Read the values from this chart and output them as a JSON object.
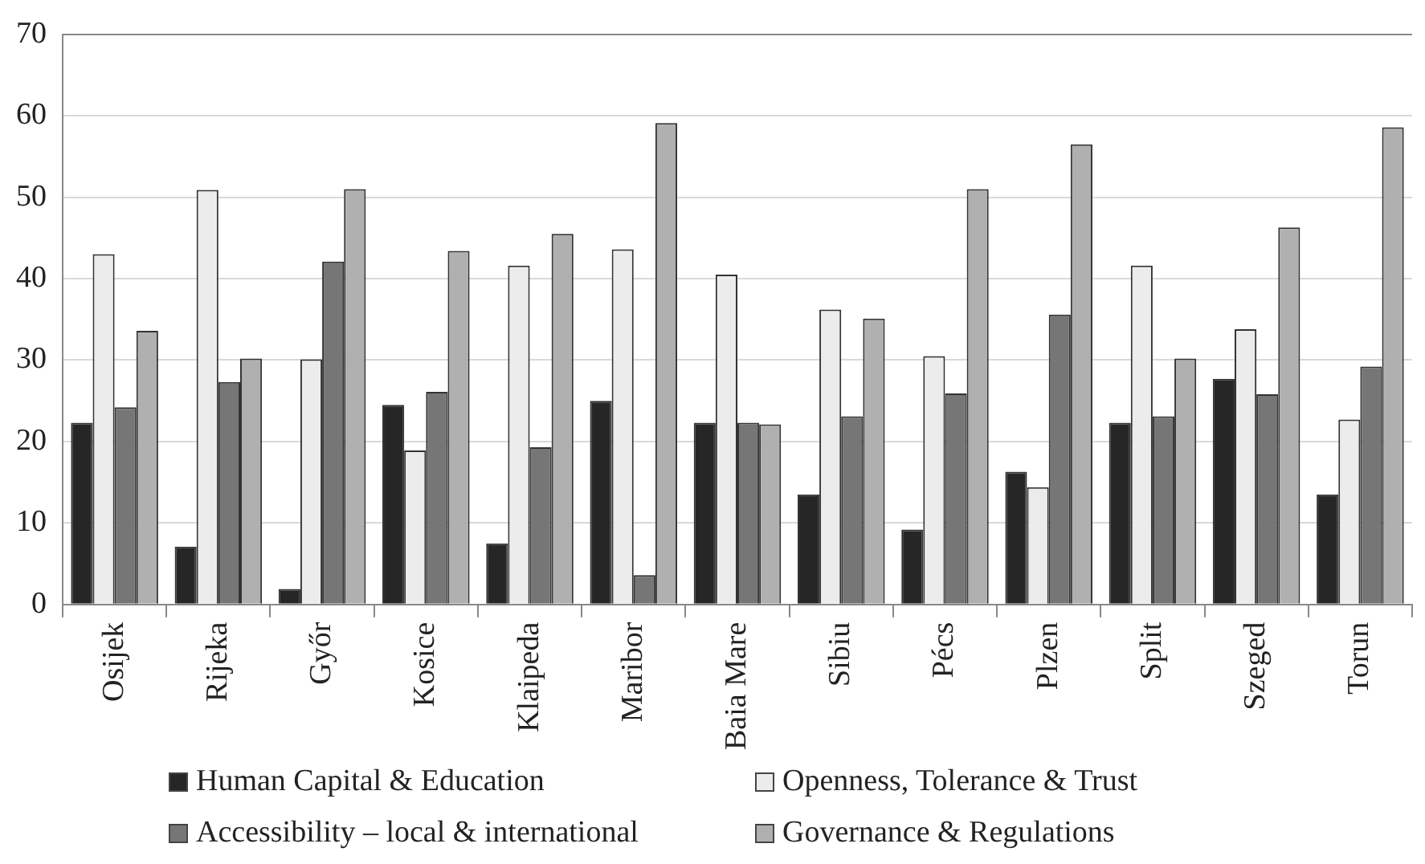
{
  "chart_data": {
    "type": "bar",
    "categories": [
      "Osijek",
      "Rijeka",
      "Győr",
      "Kosice",
      "Klaipeda",
      "Maribor",
      "Baia Mare",
      "Sibiu",
      "Pécs",
      "Plzen",
      "Split",
      "Szeged",
      "Torun"
    ],
    "series": [
      {
        "name": "Human Capital & Education",
        "color": "#262626",
        "values": [
          22.3,
          7.1,
          1.9,
          24.5,
          7.5,
          25,
          22.3,
          13.5,
          9.2,
          16.3,
          22.3,
          27.7,
          13.5
        ]
      },
      {
        "name": "Openness, Tolerance & Trust",
        "color": "#ececec",
        "values": [
          43,
          50.9,
          30.1,
          18.9,
          41.6,
          43.6,
          40.5,
          36.2,
          30.5,
          14.4,
          41.6,
          33.8,
          22.7
        ]
      },
      {
        "name": "Accessibility – local & international",
        "color": "#767676",
        "values": [
          24.2,
          27.3,
          42.1,
          26.1,
          19.3,
          3.6,
          22.3,
          23.1,
          25.9,
          35.6,
          23.1,
          25.8,
          29.2
        ]
      },
      {
        "name": "Governance & Regulations",
        "color": "#b0b0b0",
        "values": [
          33.6,
          30.2,
          51,
          43.4,
          45.5,
          59.1,
          22.1,
          35.1,
          51,
          56.5,
          30.2,
          46.3,
          58.6
        ]
      }
    ],
    "ylim": [
      0,
      70
    ],
    "yticks": [
      0,
      10,
      20,
      30,
      40,
      50,
      60,
      70
    ],
    "grid": "y",
    "legend": "bottom"
  }
}
